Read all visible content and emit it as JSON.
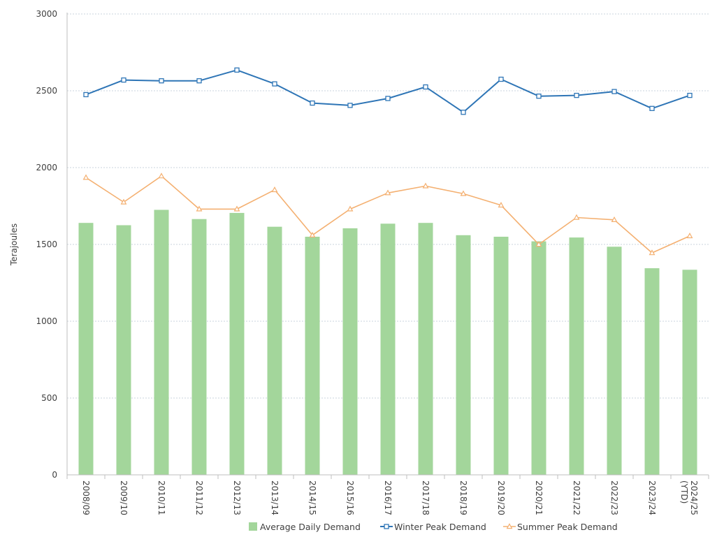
{
  "chart_data": {
    "type": "bar",
    "title": "",
    "ylabel": "Terajoules",
    "xlabel": "",
    "ylim": [
      0,
      3000
    ],
    "yticks": [
      0,
      500,
      1000,
      1500,
      2000,
      2500,
      3000
    ],
    "grid": "horizontal",
    "legend_position": "bottom",
    "categories": [
      "2008/09",
      "2009/10",
      "2010/11",
      "2011/12",
      "2012/13",
      "2013/14",
      "2014/15",
      "2015/16",
      "2016/17",
      "2017/18",
      "2018/19",
      "2019/20",
      "2020/21",
      "2021/22",
      "2022/23",
      "2023/24",
      "2024/25 (YTD)"
    ],
    "series": [
      {
        "name": "Average Daily Demand",
        "kind": "bar",
        "color": "#a3d69b",
        "values": [
          1640,
          1625,
          1725,
          1665,
          1705,
          1615,
          1550,
          1605,
          1635,
          1640,
          1560,
          1550,
          1520,
          1545,
          1485,
          1345,
          1335
        ]
      },
      {
        "name": "Winter Peak Demand",
        "kind": "line",
        "marker": "square",
        "color": "#2e75b6",
        "values": [
          2475,
          2570,
          2565,
          2565,
          2635,
          2545,
          2420,
          2405,
          2450,
          2525,
          2360,
          2575,
          2465,
          2470,
          2495,
          2385,
          2470
        ]
      },
      {
        "name": "Summer Peak Demand",
        "kind": "line",
        "marker": "triangle",
        "color": "#f4b071",
        "values": [
          1935,
          1775,
          1945,
          1730,
          1730,
          1855,
          1560,
          1730,
          1835,
          1880,
          1830,
          1755,
          1500,
          1675,
          1660,
          1445,
          1555
        ]
      }
    ]
  }
}
